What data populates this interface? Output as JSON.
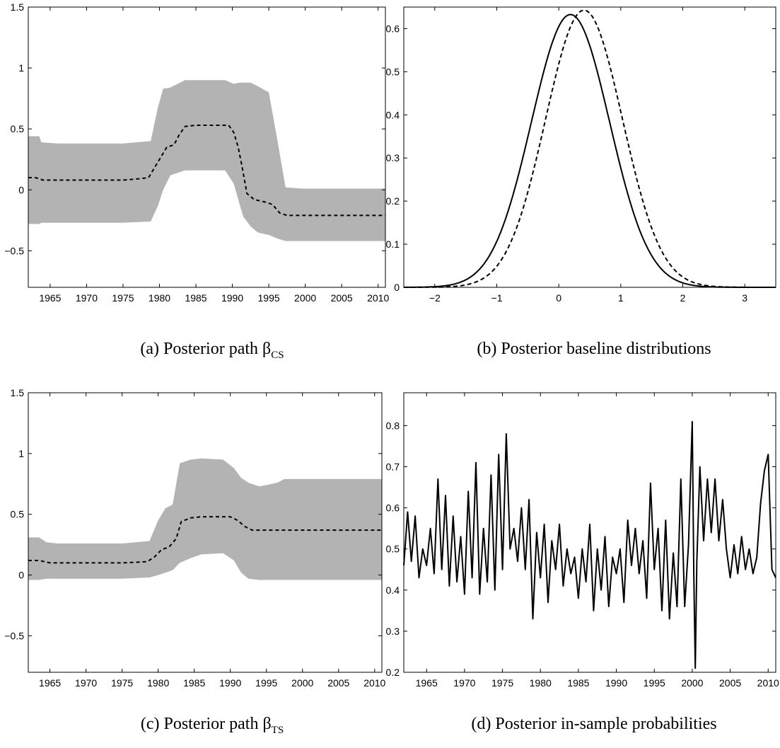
{
  "captions": {
    "a": {
      "text": "(a)  Posterior path β",
      "sub": "CS"
    },
    "b": {
      "text": "(b)  Posterior baseline distributions",
      "sub": ""
    },
    "c": {
      "text": "(c)  Posterior path β",
      "sub": "TS"
    },
    "d": {
      "text": "(d)  Posterior in-sample probabilities",
      "sub": ""
    }
  },
  "chart_data": [
    {
      "type": "area",
      "panel": "a",
      "x_ticks": [
        "1965",
        "1970",
        "1975",
        "1980",
        "1985",
        "1990",
        "1995",
        "2000",
        "2005",
        "2010"
      ],
      "y_ticks": [
        "−0.5",
        "0",
        "0.5",
        "1",
        "1.5"
      ],
      "xlim": [
        1962,
        2011
      ],
      "ylim": [
        -0.8,
        1.5
      ],
      "band_color": "#b3b3b3",
      "band": {
        "x": [
          1962,
          1963.5,
          1963.8,
          1966,
          1975,
          1978.8,
          1979.8,
          1980.5,
          1981.5,
          1982.5,
          1983.5,
          1985,
          1989,
          1990.2,
          1991,
          1991.5,
          1992.5,
          1993.5,
          1995,
          1996.2,
          1997.3,
          1999.5,
          2011
        ],
        "upper": [
          0.44,
          0.44,
          0.39,
          0.38,
          0.38,
          0.4,
          0.68,
          0.83,
          0.84,
          0.87,
          0.9,
          0.9,
          0.9,
          0.87,
          0.88,
          0.88,
          0.88,
          0.85,
          0.8,
          0.4,
          0.02,
          0.01,
          0.01
        ],
        "lower": [
          -0.28,
          -0.28,
          -0.27,
          -0.27,
          -0.27,
          -0.26,
          -0.13,
          0.0,
          0.12,
          0.14,
          0.16,
          0.16,
          0.16,
          0.05,
          -0.12,
          -0.22,
          -0.3,
          -0.35,
          -0.37,
          -0.4,
          -0.42,
          -0.42,
          -0.42
        ]
      },
      "median": {
        "style": "dashed",
        "x": [
          1962,
          1963,
          1964,
          1966,
          1975,
          1977,
          1978.5,
          1979.5,
          1980.5,
          1981,
          1982,
          1982.7,
          1983.5,
          1985,
          1989.5,
          1990.2,
          1990.8,
          1991.3,
          1992,
          1993,
          1994.5,
          1995.5,
          1996.5,
          1997.5,
          2011
        ],
        "y": [
          0.1,
          0.1,
          0.08,
          0.08,
          0.08,
          0.09,
          0.1,
          0.2,
          0.3,
          0.35,
          0.37,
          0.45,
          0.52,
          0.53,
          0.53,
          0.47,
          0.35,
          0.2,
          -0.03,
          -0.08,
          -0.1,
          -0.12,
          -0.19,
          -0.21,
          -0.21
        ]
      }
    },
    {
      "type": "line",
      "panel": "b",
      "x_ticks": [
        "−2",
        "−1",
        "0",
        "1",
        "2",
        "3"
      ],
      "y_ticks": [
        "0",
        "0.1",
        "0.2",
        "0.3",
        "0.4",
        "0.5",
        "0.6"
      ],
      "xlim": [
        -2.5,
        3.5
      ],
      "ylim": [
        0,
        0.65
      ],
      "series": [
        {
          "style": "solid",
          "dist": "skew-normal",
          "loc": 0.08,
          "scale": 0.64,
          "skew": 0.22
        },
        {
          "style": "dashed",
          "dist": "skew-normal",
          "loc": 0.3,
          "scale": 0.63,
          "skew": 0.22
        }
      ]
    },
    {
      "type": "area",
      "panel": "c",
      "x_ticks": [
        "1965",
        "1970",
        "1975",
        "1980",
        "1985",
        "1990",
        "1995",
        "2000",
        "2005",
        "2010"
      ],
      "y_ticks": [
        "−0.5",
        "0",
        "0.5",
        "1",
        "1.5"
      ],
      "xlim": [
        1962,
        2011
      ],
      "ylim": [
        -0.8,
        1.5
      ],
      "band_color": "#b3b3b3",
      "band": {
        "x": [
          1962,
          1963.5,
          1964.5,
          1966,
          1975,
          1978.8,
          1980,
          1981,
          1982,
          1983,
          1984.5,
          1986,
          1989,
          1990.5,
          1991.5,
          1992.5,
          1994,
          1995,
          1996.5,
          1997.5,
          2011
        ],
        "upper": [
          0.31,
          0.31,
          0.27,
          0.26,
          0.26,
          0.28,
          0.45,
          0.55,
          0.58,
          0.92,
          0.95,
          0.96,
          0.95,
          0.88,
          0.8,
          0.76,
          0.73,
          0.74,
          0.76,
          0.79,
          0.79
        ],
        "lower": [
          -0.04,
          -0.04,
          -0.03,
          -0.03,
          -0.03,
          -0.02,
          0.0,
          0.02,
          0.04,
          0.1,
          0.14,
          0.17,
          0.18,
          0.12,
          0.02,
          -0.03,
          -0.04,
          -0.04,
          -0.04,
          -0.04,
          -0.04
        ]
      },
      "median": {
        "style": "dashed",
        "x": [
          1962,
          1963.5,
          1965,
          1975,
          1978.5,
          1979.5,
          1980.5,
          1981.5,
          1982.5,
          1983.2,
          1984.5,
          1986,
          1990,
          1991,
          1992,
          1993,
          1995,
          2011
        ],
        "y": [
          0.12,
          0.12,
          0.1,
          0.1,
          0.11,
          0.15,
          0.21,
          0.23,
          0.3,
          0.44,
          0.47,
          0.48,
          0.48,
          0.45,
          0.4,
          0.37,
          0.37,
          0.37
        ]
      }
    },
    {
      "type": "line",
      "panel": "d",
      "x_ticks": [
        "1965",
        "1970",
        "1975",
        "1980",
        "1985",
        "1990",
        "1995",
        "2000",
        "2005",
        "2010"
      ],
      "y_ticks": [
        "0.2",
        "0.3",
        "0.4",
        "0.5",
        "0.6",
        "0.7",
        "0.8"
      ],
      "xlim": [
        1962,
        2011
      ],
      "ylim": [
        0.2,
        0.88
      ],
      "series": [
        {
          "style": "solid",
          "x": [
            1962,
            1962.5,
            1963,
            1963.5,
            1964,
            1964.5,
            1965,
            1965.5,
            1966,
            1966.5,
            1967,
            1967.5,
            1968,
            1968.5,
            1969,
            1969.5,
            1970,
            1970.5,
            1971,
            1971.5,
            1972,
            1972.5,
            1973,
            1973.5,
            1974,
            1974.5,
            1975,
            1975.5,
            1976,
            1976.5,
            1977,
            1977.5,
            1978,
            1978.5,
            1979,
            1979.5,
            1980,
            1980.5,
            1981,
            1981.5,
            1982,
            1982.5,
            1983,
            1983.5,
            1984,
            1984.5,
            1985,
            1985.5,
            1986,
            1986.5,
            1987,
            1987.5,
            1988,
            1988.5,
            1989,
            1989.5,
            1990,
            1990.5,
            1991,
            1991.5,
            1992,
            1992.5,
            1993,
            1993.5,
            1994,
            1994.5,
            1995,
            1995.5,
            1996,
            1996.5,
            1997,
            1997.5,
            1998,
            1998.5,
            1999,
            1999.5,
            2000,
            2000.2,
            2000.4,
            2000.6,
            2001,
            2001.5,
            2002,
            2002.5,
            2003,
            2003.5,
            2004,
            2004.5,
            2005,
            2005.5,
            2006,
            2006.5,
            2007,
            2007.5,
            2008,
            2008.5,
            2009,
            2009.5,
            2010,
            2010.5,
            2011
          ],
          "y": [
            0.46,
            0.59,
            0.47,
            0.58,
            0.43,
            0.5,
            0.46,
            0.55,
            0.44,
            0.67,
            0.45,
            0.63,
            0.41,
            0.58,
            0.42,
            0.53,
            0.39,
            0.64,
            0.43,
            0.71,
            0.39,
            0.55,
            0.42,
            0.68,
            0.4,
            0.73,
            0.45,
            0.78,
            0.5,
            0.55,
            0.47,
            0.6,
            0.45,
            0.62,
            0.33,
            0.54,
            0.43,
            0.56,
            0.37,
            0.52,
            0.45,
            0.56,
            0.41,
            0.5,
            0.44,
            0.48,
            0.38,
            0.5,
            0.42,
            0.56,
            0.35,
            0.5,
            0.4,
            0.53,
            0.36,
            0.48,
            0.44,
            0.5,
            0.37,
            0.57,
            0.46,
            0.55,
            0.44,
            0.52,
            0.38,
            0.66,
            0.45,
            0.55,
            0.35,
            0.57,
            0.33,
            0.49,
            0.36,
            0.67,
            0.36,
            0.51,
            0.81,
            0.44,
            0.21,
            0.47,
            0.7,
            0.52,
            0.67,
            0.54,
            0.67,
            0.52,
            0.62,
            0.5,
            0.43,
            0.51,
            0.44,
            0.53,
            0.45,
            0.5,
            0.44,
            0.48,
            0.61,
            0.69,
            0.73,
            0.45,
            0.43
          ]
        }
      ]
    }
  ]
}
